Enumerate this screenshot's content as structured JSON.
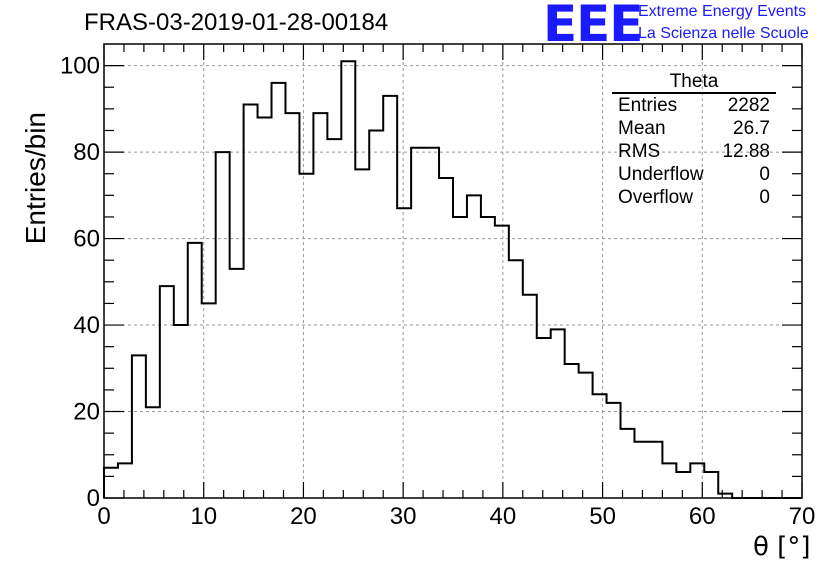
{
  "title": "FRAS-03-2019-01-28-00184",
  "logo": {
    "mark": "EEE",
    "line1": "Extreme Energy Events",
    "line2": "La Scienza nelle Scuole"
  },
  "stats": {
    "title": "Theta",
    "rows": [
      {
        "label": "Entries",
        "value": "2282"
      },
      {
        "label": "Mean",
        "value": "26.7"
      },
      {
        "label": "RMS",
        "value": "12.88"
      },
      {
        "label": "Underflow",
        "value": "0"
      },
      {
        "label": "Overflow",
        "value": "0"
      }
    ]
  },
  "chart_data": {
    "type": "bar",
    "style": "step-histogram",
    "xlabel": "θ [°]",
    "ylabel": "Entries/bin",
    "xlim": [
      0,
      70
    ],
    "ylim": [
      0,
      105
    ],
    "bin_width": 1.4,
    "xticks": [
      0,
      10,
      20,
      30,
      40,
      50,
      60,
      70
    ],
    "yticks": [
      0,
      20,
      40,
      60,
      80,
      100
    ],
    "grid": true,
    "line_color": "#000000",
    "values": [
      7,
      8,
      33,
      21,
      49,
      40,
      59,
      45,
      80,
      53,
      91,
      88,
      96,
      89,
      75,
      89,
      83,
      101,
      76,
      85,
      93,
      67,
      81,
      81,
      74,
      65,
      70,
      65,
      63,
      55,
      47,
      37,
      39,
      31,
      29,
      24,
      22,
      16,
      13,
      13,
      8,
      6,
      8,
      6,
      1,
      0,
      0,
      0,
      0,
      0
    ]
  }
}
